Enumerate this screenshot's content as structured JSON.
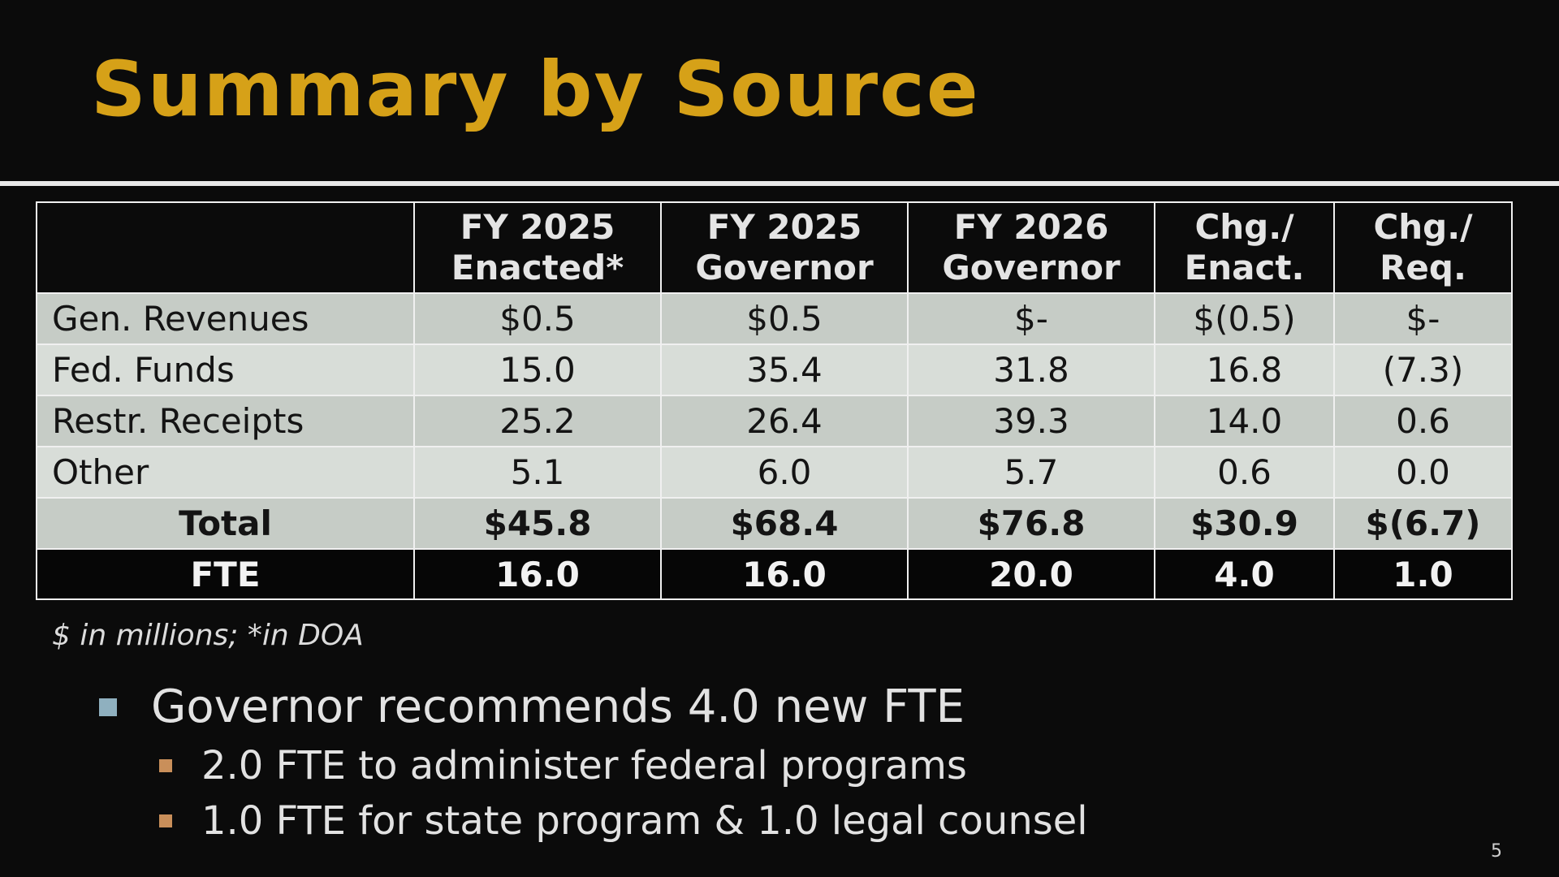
{
  "slide": {
    "title": "Summary by Source",
    "page_number": "5",
    "colors": {
      "title": "#d6a118",
      "background": "#0b0b0b",
      "row_band_dark": "#c6ccc6",
      "row_band_light": "#d8ddd8",
      "bullet_main": "#8fb0bf",
      "bullet_sub": "#c98f5a"
    }
  },
  "table": {
    "headers": [
      {
        "line1": "",
        "line2": ""
      },
      {
        "line1": "FY 2025",
        "line2": "Enacted*"
      },
      {
        "line1": "FY 2025",
        "line2": "Governor"
      },
      {
        "line1": "FY 2026",
        "line2": "Governor"
      },
      {
        "line1": "Chg./",
        "line2": "Enact."
      },
      {
        "line1": "Chg./",
        "line2": "Req."
      }
    ],
    "rows": [
      {
        "label": "Gen. Revenues",
        "cells": [
          "$0.5",
          "$0.5",
          "$-",
          "$(0.5)",
          "$-"
        ]
      },
      {
        "label": "Fed. Funds",
        "cells": [
          "15.0",
          "35.4",
          "31.8",
          "16.8",
          "(7.3)"
        ]
      },
      {
        "label": "Restr. Receipts",
        "cells": [
          "25.2",
          "26.4",
          "39.3",
          "14.0",
          "0.6"
        ]
      },
      {
        "label": "Other",
        "cells": [
          "5.1",
          "6.0",
          "5.7",
          "0.6",
          "0.0"
        ]
      },
      {
        "label": "Total",
        "cells": [
          "$45.8",
          "$68.4",
          "$76.8",
          "$30.9",
          "$(6.7)"
        ]
      },
      {
        "label": "FTE",
        "cells": [
          "16.0",
          "16.0",
          "20.0",
          "4.0",
          "1.0"
        ]
      }
    ],
    "footnote": "$ in millions; *in DOA"
  },
  "bullets": {
    "main": "Governor recommends 4.0 new FTE",
    "sub": [
      "2.0 FTE to administer federal programs",
      "1.0 FTE for state program & 1.0 legal counsel"
    ]
  }
}
